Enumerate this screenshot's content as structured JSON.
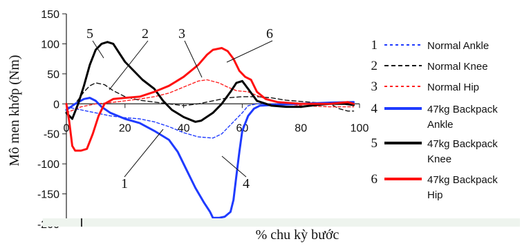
{
  "chart_data": {
    "type": "line",
    "ylabel": "Mô men khớp (Nm)",
    "xlabel": "% chu kỳ bước",
    "xlim": [
      0,
      100
    ],
    "ylim": [
      -200,
      150
    ],
    "x_ticks": [
      0,
      20,
      40,
      60,
      80,
      100
    ],
    "x_tick_labels": [
      "0",
      "20",
      "40",
      "60",
      "80",
      "100"
    ],
    "y_ticks": [
      150,
      100,
      50,
      0,
      -50,
      -100,
      -150,
      -200
    ],
    "y_tick_labels": [
      "150",
      "100",
      "50",
      "0",
      "-50",
      "-100",
      "-150",
      "-200"
    ],
    "grid": false,
    "legend_position": "right",
    "series": [
      {
        "id": "1",
        "name": "Normal Ankle",
        "legend_label": [
          "Normal Ankle"
        ],
        "color": "#1f3bff",
        "dash": "dotted",
        "points": [
          [
            0,
            -5
          ],
          [
            5,
            -10
          ],
          [
            10,
            -15
          ],
          [
            15,
            -20
          ],
          [
            20,
            -23
          ],
          [
            25,
            -25
          ],
          [
            30,
            -30
          ],
          [
            35,
            -38
          ],
          [
            40,
            -48
          ],
          [
            45,
            -55
          ],
          [
            50,
            -57
          ],
          [
            53,
            -50
          ],
          [
            56,
            -35
          ],
          [
            60,
            -15
          ],
          [
            62,
            -3
          ],
          [
            65,
            0
          ],
          [
            70,
            0
          ],
          [
            80,
            0
          ],
          [
            90,
            1
          ],
          [
            98,
            2
          ]
        ]
      },
      {
        "id": "2",
        "name": "Normal Knee",
        "legend_label": [
          "Normal Knee"
        ],
        "color": "#111111",
        "dash": "dashed",
        "points": [
          [
            0,
            -10
          ],
          [
            3,
            0
          ],
          [
            6,
            20
          ],
          [
            8,
            30
          ],
          [
            10,
            35
          ],
          [
            13,
            32
          ],
          [
            16,
            22
          ],
          [
            20,
            12
          ],
          [
            25,
            6
          ],
          [
            30,
            3
          ],
          [
            35,
            0
          ],
          [
            40,
            -3
          ],
          [
            45,
            0
          ],
          [
            50,
            5
          ],
          [
            55,
            10
          ],
          [
            60,
            12
          ],
          [
            65,
            12
          ],
          [
            70,
            10
          ],
          [
            75,
            6
          ],
          [
            80,
            4
          ],
          [
            85,
            2
          ],
          [
            90,
            0
          ],
          [
            93,
            -8
          ],
          [
            96,
            -12
          ],
          [
            98,
            -12
          ]
        ]
      },
      {
        "id": "3",
        "name": "Normal Hip",
        "legend_label": [
          "Normal Hip"
        ],
        "color": "#ff2020",
        "dash": "dotted",
        "points": [
          [
            0,
            -15
          ],
          [
            5,
            -5
          ],
          [
            10,
            0
          ],
          [
            15,
            2
          ],
          [
            20,
            5
          ],
          [
            25,
            8
          ],
          [
            30,
            12
          ],
          [
            35,
            18
          ],
          [
            40,
            28
          ],
          [
            45,
            38
          ],
          [
            48,
            40
          ],
          [
            52,
            35
          ],
          [
            55,
            28
          ],
          [
            58,
            22
          ],
          [
            62,
            20
          ],
          [
            66,
            12
          ],
          [
            70,
            5
          ],
          [
            75,
            0
          ],
          [
            80,
            -3
          ],
          [
            90,
            -5
          ],
          [
            98,
            -5
          ]
        ]
      },
      {
        "id": "4",
        "name": "47kg Backpack Ankle",
        "legend_label": [
          "47kg Backpack",
          "Ankle"
        ],
        "color": "#1f3bff",
        "dash": "solid",
        "points": [
          [
            0,
            -10
          ],
          [
            3,
            0
          ],
          [
            6,
            8
          ],
          [
            8,
            10
          ],
          [
            10,
            5
          ],
          [
            12,
            -5
          ],
          [
            15,
            -15
          ],
          [
            20,
            -25
          ],
          [
            25,
            -32
          ],
          [
            30,
            -45
          ],
          [
            35,
            -60
          ],
          [
            38,
            -80
          ],
          [
            41,
            -110
          ],
          [
            44,
            -140
          ],
          [
            47,
            -165
          ],
          [
            49,
            -180
          ],
          [
            50,
            -190
          ],
          [
            52,
            -190
          ],
          [
            54,
            -188
          ],
          [
            56,
            -180
          ],
          [
            57,
            -160
          ],
          [
            58,
            -120
          ],
          [
            59,
            -80
          ],
          [
            60,
            -45
          ],
          [
            62,
            -20
          ],
          [
            64,
            -8
          ],
          [
            66,
            -3
          ],
          [
            70,
            -2
          ],
          [
            80,
            0
          ],
          [
            90,
            2
          ],
          [
            98,
            3
          ]
        ]
      },
      {
        "id": "5",
        "name": "47kg Backpack Knee",
        "legend_label": [
          "47kg Backpack",
          "Knee"
        ],
        "color": "#000000",
        "dash": "solid",
        "points": [
          [
            0,
            -15
          ],
          [
            2,
            -25
          ],
          [
            4,
            0
          ],
          [
            6,
            30
          ],
          [
            8,
            65
          ],
          [
            10,
            90
          ],
          [
            12,
            100
          ],
          [
            14,
            103
          ],
          [
            16,
            100
          ],
          [
            18,
            85
          ],
          [
            20,
            70
          ],
          [
            23,
            55
          ],
          [
            26,
            40
          ],
          [
            30,
            25
          ],
          [
            33,
            5
          ],
          [
            36,
            -10
          ],
          [
            40,
            -22
          ],
          [
            44,
            -30
          ],
          [
            46,
            -28
          ],
          [
            50,
            -15
          ],
          [
            53,
            0
          ],
          [
            56,
            20
          ],
          [
            58,
            35
          ],
          [
            60,
            38
          ],
          [
            62,
            25
          ],
          [
            65,
            5
          ],
          [
            70,
            -3
          ],
          [
            75,
            -5
          ],
          [
            80,
            -5
          ],
          [
            85,
            -2
          ],
          [
            90,
            0
          ],
          [
            95,
            0
          ],
          [
            98,
            -2
          ]
        ]
      },
      {
        "id": "6",
        "name": "47kg Backpack Hip",
        "legend_label": [
          "47kg Backpack",
          "Hip"
        ],
        "color": "#ff1010",
        "dash": "solid",
        "points": [
          [
            0,
            0
          ],
          [
            1,
            -30
          ],
          [
            2,
            -70
          ],
          [
            3,
            -78
          ],
          [
            5,
            -78
          ],
          [
            7,
            -75
          ],
          [
            9,
            -50
          ],
          [
            11,
            -20
          ],
          [
            13,
            0
          ],
          [
            16,
            8
          ],
          [
            20,
            10
          ],
          [
            25,
            12
          ],
          [
            30,
            20
          ],
          [
            35,
            30
          ],
          [
            40,
            45
          ],
          [
            45,
            65
          ],
          [
            48,
            82
          ],
          [
            50,
            90
          ],
          [
            53,
            93
          ],
          [
            55,
            88
          ],
          [
            57,
            75
          ],
          [
            59,
            55
          ],
          [
            61,
            45
          ],
          [
            63,
            40
          ],
          [
            65,
            20
          ],
          [
            68,
            8
          ],
          [
            72,
            3
          ],
          [
            80,
            0
          ],
          [
            90,
            0
          ],
          [
            96,
            3
          ],
          [
            98,
            0
          ]
        ]
      }
    ],
    "annotations": [
      {
        "label": "5",
        "series": "5"
      },
      {
        "label": "2",
        "series": "2"
      },
      {
        "label": "3",
        "series": "3"
      },
      {
        "label": "6",
        "series": "6"
      },
      {
        "label": "1",
        "series": "1"
      },
      {
        "label": "4",
        "series": "4"
      }
    ]
  }
}
